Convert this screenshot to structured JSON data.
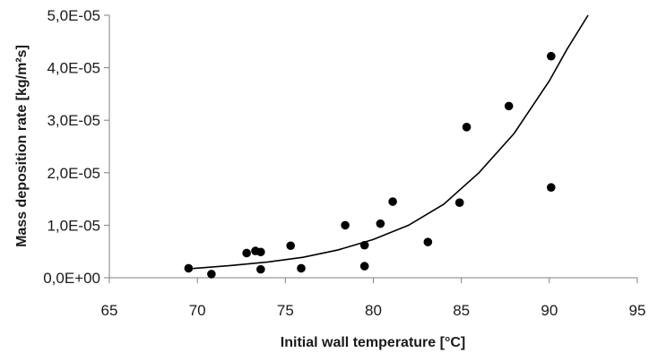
{
  "chart_data": {
    "type": "scatter",
    "title": "",
    "xlabel": "Initial wall temperature [°C]",
    "ylabel": "Mass deposition rate [kg/m²s]",
    "xlim": [
      65,
      95
    ],
    "ylim": [
      0,
      5e-05
    ],
    "x_ticks": [
      65,
      70,
      75,
      80,
      85,
      90,
      95
    ],
    "x_tick_labels": [
      "65",
      "70",
      "75",
      "80",
      "85",
      "90",
      "95"
    ],
    "y_ticks": [
      0,
      1e-05,
      2e-05,
      3e-05,
      4e-05,
      5e-05
    ],
    "y_tick_labels": [
      "0,0E+00",
      "1,0E-05",
      "2,0E-05",
      "3,0E-05",
      "4,0E-05",
      "5,0E-05"
    ],
    "grid": false,
    "legend": "none",
    "marker_color": "#000000",
    "points": [
      {
        "x": 69.5,
        "y": 1.8e-06
      },
      {
        "x": 70.8,
        "y": 7e-07
      },
      {
        "x": 72.8,
        "y": 4.7e-06
      },
      {
        "x": 73.3,
        "y": 5.1e-06
      },
      {
        "x": 73.6,
        "y": 4.9e-06
      },
      {
        "x": 73.6,
        "y": 1.6e-06
      },
      {
        "x": 75.3,
        "y": 6.1e-06
      },
      {
        "x": 75.9,
        "y": 1.8e-06
      },
      {
        "x": 78.4,
        "y": 1e-05
      },
      {
        "x": 79.5,
        "y": 6.2e-06
      },
      {
        "x": 79.5,
        "y": 2.2e-06
      },
      {
        "x": 80.4,
        "y": 1.03e-05
      },
      {
        "x": 81.1,
        "y": 1.45e-05
      },
      {
        "x": 83.1,
        "y": 6.8e-06
      },
      {
        "x": 84.9,
        "y": 1.43e-05
      },
      {
        "x": 85.3,
        "y": 2.87e-05
      },
      {
        "x": 87.7,
        "y": 3.27e-05
      },
      {
        "x": 90.1,
        "y": 4.22e-05
      },
      {
        "x": 90.1,
        "y": 1.72e-05
      }
    ],
    "trendline": {
      "type": "exponential",
      "x": [
        69.5,
        72,
        74,
        76,
        78,
        80,
        82,
        84,
        86,
        88,
        90,
        91,
        92.2
      ],
      "y": [
        1.7e-06,
        2.35e-06,
        3e-06,
        3.9e-06,
        5.3e-06,
        7.3e-06,
        1e-05,
        1.4e-05,
        2e-05,
        2.75e-05,
        3.75e-05,
        4.35e-05,
        5e-05
      ]
    }
  }
}
